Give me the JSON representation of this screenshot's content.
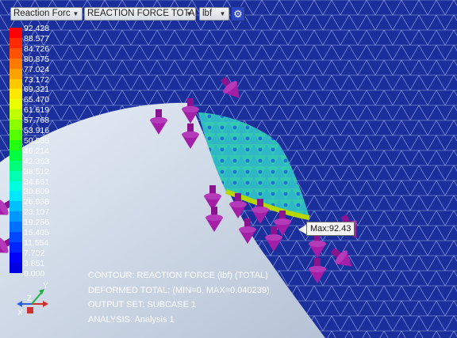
{
  "toolbar": {
    "result_select": "Reaction Forc",
    "component_select": "REACTION FORCE TOTAL",
    "units_select": "lbf",
    "settings_icon": "gear-icon"
  },
  "legend": {
    "values": [
      "92.428",
      "88.577",
      "84.726",
      "80.875",
      "77.024",
      "73.172",
      "69.321",
      "65.470",
      "61.619",
      "57.768",
      "53.916",
      "50.065",
      "46.214",
      "42.363",
      "38.512",
      "34.661",
      "30.809",
      "26.958",
      "23.107",
      "19.256",
      "15.405",
      "11.554",
      "7.702",
      "3.851",
      "0.000"
    ],
    "colors": [
      "#ff0000",
      "#ff2a00",
      "#ff5200",
      "#ff7a00",
      "#ffa200",
      "#ffc800",
      "#ffe800",
      "#eaff00",
      "#c0ff00",
      "#8cff00",
      "#55ff00",
      "#22ff10",
      "#00ff40",
      "#00ff78",
      "#00ffb0",
      "#00ffe0",
      "#00e8ff",
      "#00c0ff",
      "#0098ff",
      "#0070ff",
      "#0048ff",
      "#0024ff",
      "#0000ff",
      "#0000e0"
    ]
  },
  "info": {
    "contour": "CONTOUR: REACTION FORCE (lbf) (TOTAL)",
    "deformed": "DEFORMED TOTAL: (MIN=0, MAX=0.040239)",
    "output_set": "OUTPUT SET: SUBCASE 1",
    "analysis": "ANALYSIS: Analysis 1"
  },
  "max_label": "Max:92.43",
  "triad": {
    "x": "X",
    "y": "Y",
    "z": "Z"
  },
  "colors": {
    "background": "#1a2f9c",
    "mesh": "#c8d4ff",
    "part": "#cfd9e8",
    "arrow": "#9a1aa0"
  }
}
